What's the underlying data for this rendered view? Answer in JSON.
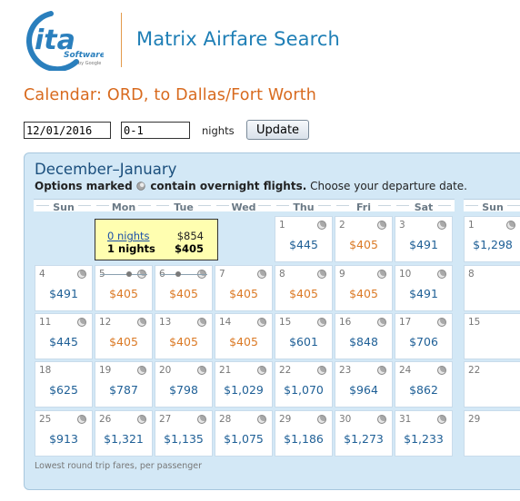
{
  "header": {
    "logo_text": "ita",
    "logo_subtext": "Software",
    "logo_byline": "by Google",
    "app_title": "Matrix Airfare Search"
  },
  "page_title": "Calendar: ORD, to Dallas/Fort Worth",
  "form": {
    "date_value": "12/01/2016",
    "nights_value": "0-1",
    "nights_label": "nights",
    "update_label": "Update"
  },
  "calendar": {
    "heading": "December–January",
    "note_bold_1": "Options marked",
    "note_bold_2": "contain overnight flights.",
    "note_rest": "Choose your departure date.",
    "weekdays": [
      "Sun",
      "Mon",
      "Tue",
      "Wed",
      "Thu",
      "Fri",
      "Sat",
      "Sun"
    ],
    "popup": {
      "row1_label": "0 nights",
      "row1_price": "$854",
      "row2_label": "1 nights",
      "row2_price": "$405"
    },
    "footnote": "Lowest round trip fares, per passenger",
    "colors": {
      "blue": "#1e5f96",
      "orange": "#db7a26"
    },
    "weeks": [
      [
        null,
        null,
        null,
        null,
        {
          "day": "1",
          "price": "$445",
          "color": "blue",
          "overnight": true
        },
        {
          "day": "2",
          "price": "$405",
          "color": "orange",
          "overnight": true
        },
        {
          "day": "3",
          "price": "$491",
          "color": "blue",
          "overnight": true
        },
        {
          "day": "1",
          "price": "$1,298",
          "color": "blue",
          "overnight": true
        }
      ],
      [
        {
          "day": "4",
          "price": "$491",
          "color": "blue",
          "overnight": true
        },
        {
          "day": "5",
          "price": "$405",
          "color": "orange",
          "overnight": true,
          "range": "start"
        },
        {
          "day": "6",
          "price": "$405",
          "color": "orange",
          "overnight": true,
          "range": "end"
        },
        {
          "day": "7",
          "price": "$405",
          "color": "orange",
          "overnight": true
        },
        {
          "day": "8",
          "price": "$405",
          "color": "orange",
          "overnight": true
        },
        {
          "day": "9",
          "price": "$405",
          "color": "orange",
          "overnight": true
        },
        {
          "day": "10",
          "price": "$491",
          "color": "blue",
          "overnight": true
        },
        {
          "day": "8",
          "price": "",
          "color": "blue",
          "overnight": false
        }
      ],
      [
        {
          "day": "11",
          "price": "$445",
          "color": "blue",
          "overnight": true
        },
        {
          "day": "12",
          "price": "$405",
          "color": "orange",
          "overnight": true
        },
        {
          "day": "13",
          "price": "$405",
          "color": "orange",
          "overnight": true
        },
        {
          "day": "14",
          "price": "$405",
          "color": "orange",
          "overnight": true
        },
        {
          "day": "15",
          "price": "$601",
          "color": "blue",
          "overnight": true
        },
        {
          "day": "16",
          "price": "$848",
          "color": "blue",
          "overnight": true
        },
        {
          "day": "17",
          "price": "$706",
          "color": "blue",
          "overnight": true
        },
        {
          "day": "15",
          "price": "",
          "color": "blue",
          "overnight": false
        }
      ],
      [
        {
          "day": "18",
          "price": "$625",
          "color": "blue",
          "overnight": false
        },
        {
          "day": "19",
          "price": "$787",
          "color": "blue",
          "overnight": true
        },
        {
          "day": "20",
          "price": "$798",
          "color": "blue",
          "overnight": true
        },
        {
          "day": "21",
          "price": "$1,029",
          "color": "blue",
          "overnight": true
        },
        {
          "day": "22",
          "price": "$1,070",
          "color": "blue",
          "overnight": true
        },
        {
          "day": "23",
          "price": "$964",
          "color": "blue",
          "overnight": true
        },
        {
          "day": "24",
          "price": "$862",
          "color": "blue",
          "overnight": true
        },
        {
          "day": "22",
          "price": "",
          "color": "blue",
          "overnight": false
        }
      ],
      [
        {
          "day": "25",
          "price": "$913",
          "color": "blue",
          "overnight": true
        },
        {
          "day": "26",
          "price": "$1,321",
          "color": "blue",
          "overnight": true
        },
        {
          "day": "27",
          "price": "$1,135",
          "color": "blue",
          "overnight": true
        },
        {
          "day": "28",
          "price": "$1,075",
          "color": "blue",
          "overnight": true
        },
        {
          "day": "29",
          "price": "$1,186",
          "color": "blue",
          "overnight": true
        },
        {
          "day": "30",
          "price": "$1,273",
          "color": "blue",
          "overnight": true
        },
        {
          "day": "31",
          "price": "$1,233",
          "color": "blue",
          "overnight": true
        },
        {
          "day": "29",
          "price": "",
          "color": "blue",
          "overnight": false
        }
      ]
    ]
  }
}
